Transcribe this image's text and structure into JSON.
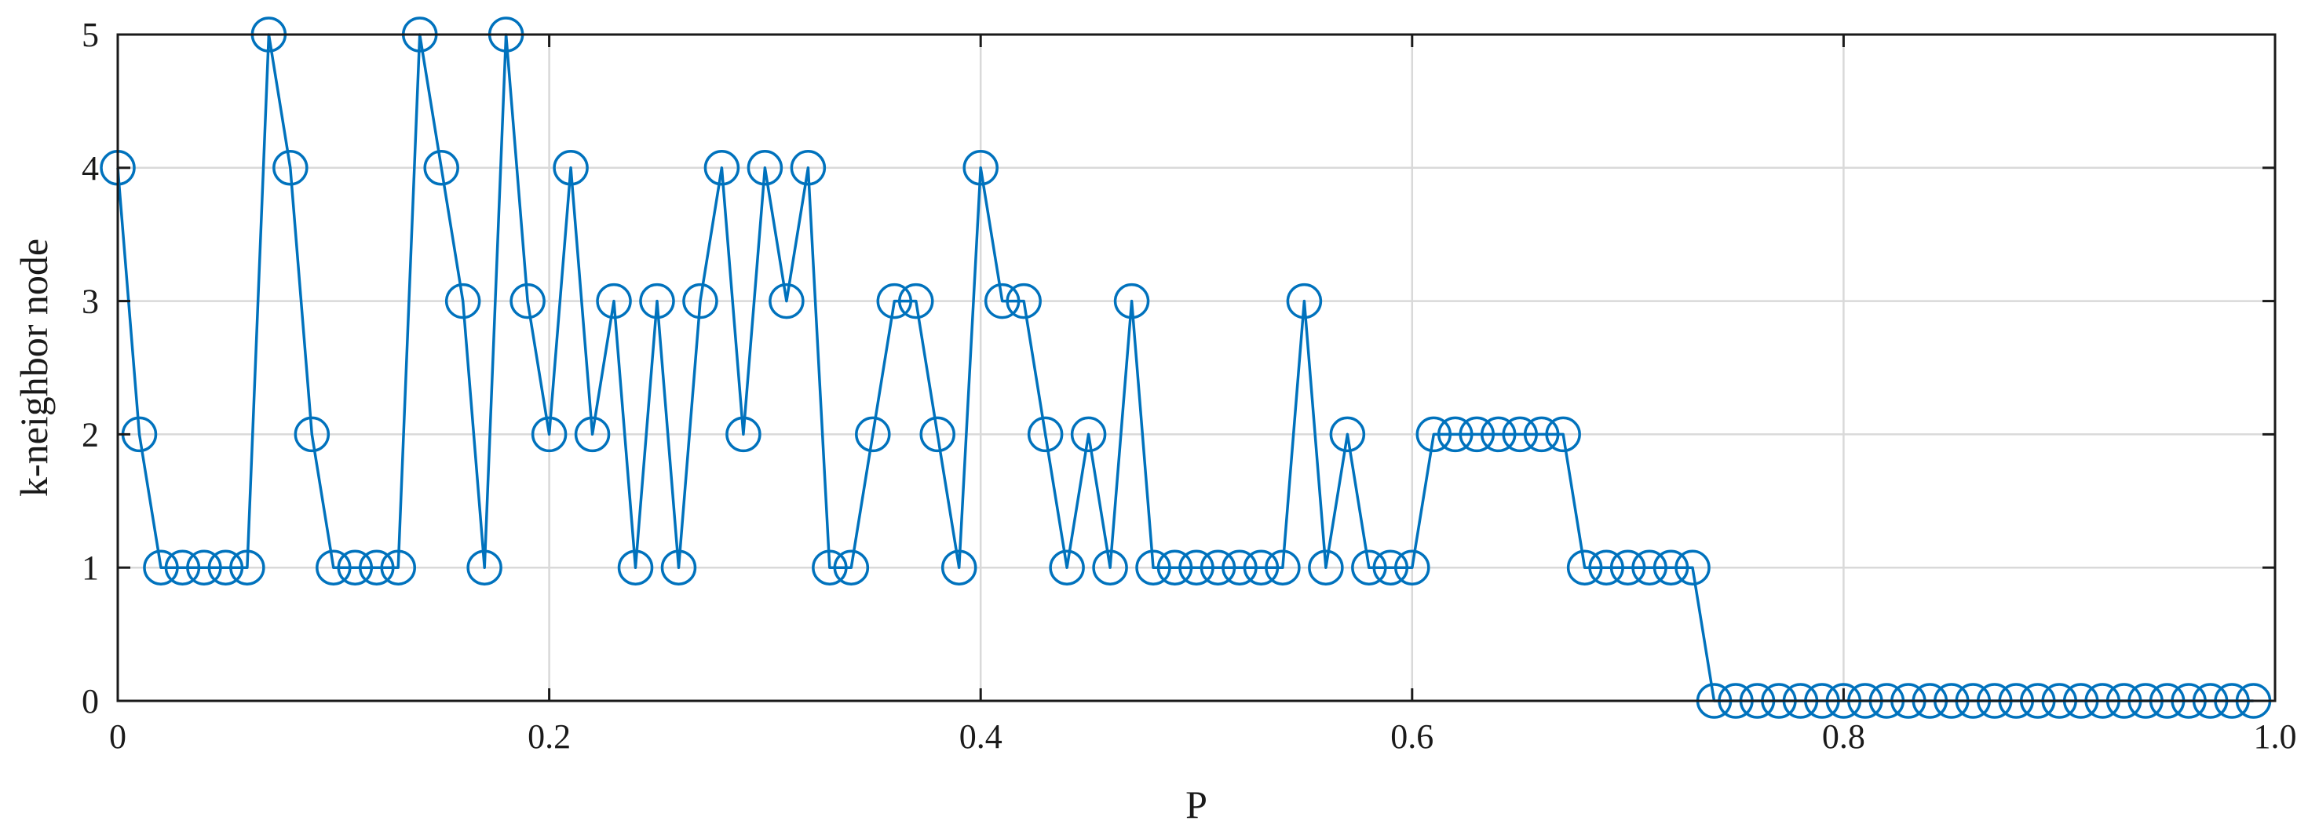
{
  "chart_data": {
    "type": "line",
    "xlabel": "P",
    "ylabel": "k-neighbor node",
    "xlim": [
      0,
      1
    ],
    "ylim": [
      0,
      5
    ],
    "x_ticks": [
      0,
      0.2,
      0.4,
      0.6,
      0.8,
      1
    ],
    "x_tick_labels": [
      "0",
      "0.2",
      "0.4",
      "0.6",
      "0.8",
      "1.0"
    ],
    "y_ticks": [
      0,
      1,
      2,
      3,
      4,
      5
    ],
    "y_tick_labels": [
      "0",
      "1",
      "2",
      "3",
      "4",
      "5"
    ],
    "grid": true,
    "marker": "circle",
    "color": "#0072BD",
    "x": [
      0,
      0.01,
      0.02,
      0.03,
      0.04,
      0.05,
      0.06,
      0.07,
      0.08,
      0.09,
      0.1,
      0.11,
      0.12,
      0.13,
      0.14,
      0.15,
      0.16,
      0.17,
      0.18,
      0.19,
      0.2,
      0.21,
      0.22,
      0.23,
      0.24,
      0.25,
      0.26,
      0.27,
      0.28,
      0.29,
      0.3,
      0.31,
      0.32,
      0.33,
      0.34,
      0.35,
      0.36,
      0.37,
      0.38,
      0.39,
      0.4,
      0.41,
      0.42,
      0.43,
      0.44,
      0.45,
      0.46,
      0.47,
      0.48,
      0.49,
      0.5,
      0.51,
      0.52,
      0.53,
      0.54,
      0.55,
      0.56,
      0.57,
      0.58,
      0.59,
      0.6,
      0.61,
      0.62,
      0.63,
      0.64,
      0.65,
      0.66,
      0.67,
      0.68,
      0.69,
      0.7,
      0.71,
      0.72,
      0.73,
      0.74,
      0.75,
      0.76,
      0.77,
      0.78,
      0.79,
      0.8,
      0.81,
      0.82,
      0.83,
      0.84,
      0.85,
      0.86,
      0.87,
      0.88,
      0.89,
      0.9,
      0.91,
      0.92,
      0.93,
      0.94,
      0.95,
      0.96,
      0.97,
      0.98,
      0.99
    ],
    "y": [
      4,
      2,
      1,
      1,
      1,
      1,
      1,
      5,
      4,
      2,
      1,
      1,
      1,
      1,
      5,
      4,
      3,
      1,
      5,
      3,
      2,
      4,
      2,
      3,
      1,
      3,
      1,
      3,
      4,
      2,
      4,
      3,
      4,
      1,
      1,
      2,
      3,
      3,
      2,
      1,
      4,
      3,
      3,
      2,
      1,
      2,
      1,
      3,
      1,
      1,
      1,
      1,
      1,
      1,
      1,
      3,
      1,
      2,
      1,
      1,
      1,
      2,
      2,
      2,
      2,
      2,
      2,
      2,
      1,
      1,
      1,
      1,
      1,
      1,
      0,
      0,
      0,
      0,
      0,
      0,
      0,
      0,
      0,
      0,
      0,
      0,
      0,
      0,
      0,
      0,
      0,
      0,
      0,
      0,
      0,
      0,
      0,
      0,
      0,
      0
    ]
  }
}
